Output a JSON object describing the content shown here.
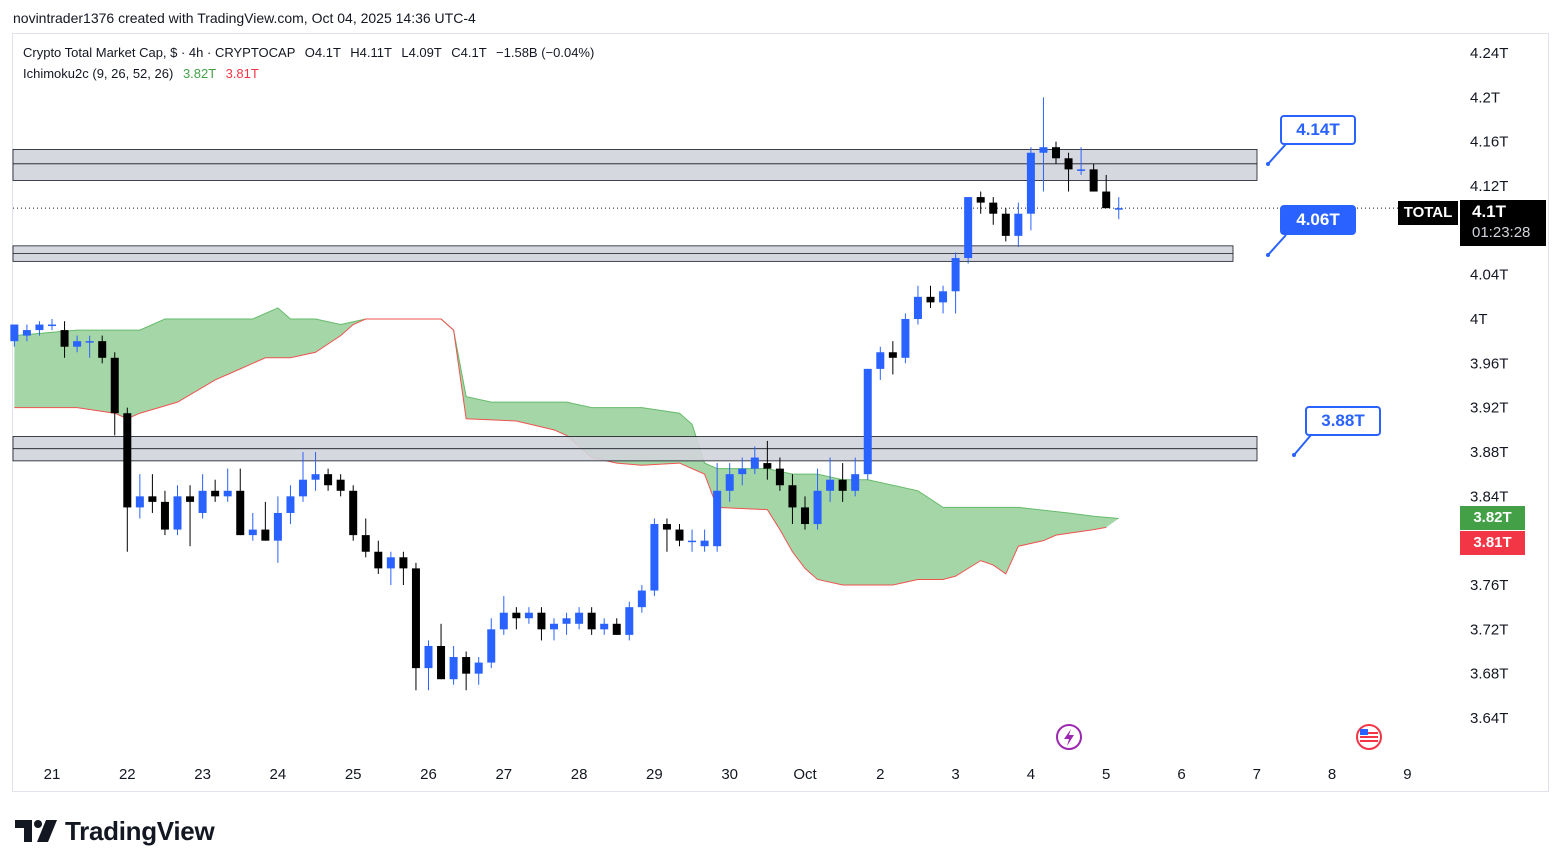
{
  "caption": "novintrader1376 created with TradingView.com, Oct 04, 2025 14:36 UTC-4",
  "legend": {
    "symbol": "Crypto Total Market Cap, $ · 4h · CRYPTOCAP",
    "open": "O4.1T",
    "high": "H4.11T",
    "low": "L4.09T",
    "close": "C4.1T",
    "change": "−1.58B (−0.04%)",
    "indicator": "Ichimoku2c (9, 26, 52, 26)",
    "ind_val1": "3.82T",
    "ind_val2": "3.81T"
  },
  "price_labels": {
    "symbol": "TOTAL",
    "last": "4.1T",
    "countdown": "01:23:28",
    "lead1": "3.82T",
    "lead2": "3.81T"
  },
  "callouts": {
    "upper": "4.14T",
    "middle": "4.06T",
    "lower": "3.88T"
  },
  "colors": {
    "up": "#2962ff",
    "down": "#000000",
    "cloud_fill": "#a5d6a7",
    "cloud_line": "#ef5350",
    "zone_fill": "#d1d4dc",
    "lead1": "#43a047",
    "lead2": "#f23645"
  },
  "branding": "TradingView",
  "icons": {
    "event_flash": "lightning-icon",
    "event_economic": "us-flag-icon",
    "logo": "tradingview-logo-icon"
  },
  "chart_data": {
    "type": "candlestick",
    "title": "Crypto Total Market Cap, $ · 4h · CRYPTOCAP",
    "y_ticks": [
      "4.24T",
      "4.2T",
      "4.16T",
      "4.12T",
      "4.04T",
      "4T",
      "3.96T",
      "3.92T",
      "3.88T",
      "3.84T",
      "3.76T",
      "3.72T",
      "3.68T",
      "3.64T"
    ],
    "y_tick_values": [
      4.24,
      4.2,
      4.16,
      4.12,
      4.04,
      4.0,
      3.96,
      3.92,
      3.88,
      3.84,
      3.76,
      3.72,
      3.68,
      3.64
    ],
    "ylim": [
      3.615,
      4.265
    ],
    "x_ticks": [
      "21",
      "22",
      "23",
      "24",
      "25",
      "26",
      "27",
      "28",
      "29",
      "30",
      "Oct",
      "2",
      "3",
      "4",
      "5",
      "6",
      "7",
      "8",
      "9"
    ],
    "x_start_day": 21,
    "candles_per_day": 6,
    "candles": [
      [
        3.98,
        3.995,
        3.975,
        3.995
      ],
      [
        3.985,
        3.995,
        3.98,
        3.99
      ],
      [
        3.99,
        3.998,
        3.985,
        3.995
      ],
      [
        3.995,
        4.0,
        3.99,
        3.995
      ],
      [
        3.99,
        3.998,
        3.965,
        3.975
      ],
      [
        3.975,
        3.985,
        3.97,
        3.98
      ],
      [
        3.98,
        3.985,
        3.965,
        3.98
      ],
      [
        3.98,
        3.985,
        3.96,
        3.965
      ],
      [
        3.965,
        3.97,
        3.895,
        3.915
      ],
      [
        3.915,
        3.92,
        3.79,
        3.83
      ],
      [
        3.83,
        3.86,
        3.82,
        3.84
      ],
      [
        3.84,
        3.86,
        3.825,
        3.835
      ],
      [
        3.835,
        3.845,
        3.805,
        3.81
      ],
      [
        3.81,
        3.85,
        3.805,
        3.84
      ],
      [
        3.84,
        3.85,
        3.795,
        3.835
      ],
      [
        3.825,
        3.86,
        3.82,
        3.845
      ],
      [
        3.845,
        3.855,
        3.835,
        3.84
      ],
      [
        3.84,
        3.865,
        3.835,
        3.845
      ],
      [
        3.845,
        3.865,
        3.805,
        3.805
      ],
      [
        3.805,
        3.825,
        3.8,
        3.81
      ],
      [
        3.81,
        3.835,
        3.8,
        3.8
      ],
      [
        3.8,
        3.84,
        3.78,
        3.825
      ],
      [
        3.825,
        3.85,
        3.815,
        3.84
      ],
      [
        3.84,
        3.88,
        3.835,
        3.855
      ],
      [
        3.855,
        3.88,
        3.845,
        3.86
      ],
      [
        3.86,
        3.865,
        3.845,
        3.85
      ],
      [
        3.855,
        3.86,
        3.84,
        3.845
      ],
      [
        3.845,
        3.85,
        3.8,
        3.805
      ],
      [
        3.805,
        3.82,
        3.785,
        3.79
      ],
      [
        3.79,
        3.8,
        3.77,
        3.775
      ],
      [
        3.775,
        3.79,
        3.76,
        3.785
      ],
      [
        3.785,
        3.79,
        3.76,
        3.775
      ],
      [
        3.775,
        3.78,
        3.665,
        3.685
      ],
      [
        3.685,
        3.71,
        3.665,
        3.705
      ],
      [
        3.705,
        3.725,
        3.675,
        3.675
      ],
      [
        3.675,
        3.705,
        3.67,
        3.695
      ],
      [
        3.695,
        3.7,
        3.665,
        3.68
      ],
      [
        3.68,
        3.695,
        3.67,
        3.69
      ],
      [
        3.69,
        3.73,
        3.685,
        3.72
      ],
      [
        3.72,
        3.75,
        3.715,
        3.735
      ],
      [
        3.735,
        3.74,
        3.72,
        3.73
      ],
      [
        3.73,
        3.74,
        3.725,
        3.735
      ],
      [
        3.735,
        3.74,
        3.71,
        3.72
      ],
      [
        3.72,
        3.73,
        3.71,
        3.725
      ],
      [
        3.725,
        3.735,
        3.715,
        3.73
      ],
      [
        3.725,
        3.74,
        3.72,
        3.735
      ],
      [
        3.735,
        3.74,
        3.715,
        3.72
      ],
      [
        3.72,
        3.73,
        3.715,
        3.725
      ],
      [
        3.725,
        3.73,
        3.715,
        3.715
      ],
      [
        3.715,
        3.745,
        3.71,
        3.74
      ],
      [
        3.74,
        3.76,
        3.735,
        3.755
      ],
      [
        3.755,
        3.82,
        3.75,
        3.815
      ],
      [
        3.815,
        3.82,
        3.79,
        3.81
      ],
      [
        3.81,
        3.815,
        3.795,
        3.8
      ],
      [
        3.8,
        3.81,
        3.79,
        3.8
      ],
      [
        3.795,
        3.81,
        3.79,
        3.8
      ],
      [
        3.795,
        3.87,
        3.79,
        3.845
      ],
      [
        3.845,
        3.87,
        3.835,
        3.86
      ],
      [
        3.86,
        3.875,
        3.85,
        3.865
      ],
      [
        3.865,
        3.885,
        3.86,
        3.875
      ],
      [
        3.87,
        3.89,
        3.855,
        3.865
      ],
      [
        3.865,
        3.875,
        3.845,
        3.85
      ],
      [
        3.85,
        3.86,
        3.815,
        3.83
      ],
      [
        3.83,
        3.84,
        3.81,
        3.815
      ],
      [
        3.815,
        3.865,
        3.81,
        3.845
      ],
      [
        3.845,
        3.875,
        3.835,
        3.855
      ],
      [
        3.855,
        3.87,
        3.835,
        3.845
      ],
      [
        3.845,
        3.875,
        3.84,
        3.86
      ],
      [
        3.86,
        3.955,
        3.855,
        3.955
      ],
      [
        3.955,
        3.975,
        3.945,
        3.97
      ],
      [
        3.97,
        3.98,
        3.95,
        3.965
      ],
      [
        3.965,
        4.005,
        3.96,
        4.0
      ],
      [
        4.0,
        4.03,
        3.995,
        4.02
      ],
      [
        4.02,
        4.03,
        4.01,
        4.015
      ],
      [
        4.015,
        4.03,
        4.005,
        4.025
      ],
      [
        4.025,
        4.06,
        4.005,
        4.055
      ],
      [
        4.055,
        4.11,
        4.05,
        4.11
      ],
      [
        4.11,
        4.115,
        4.095,
        4.105
      ],
      [
        4.105,
        4.11,
        4.085,
        4.095
      ],
      [
        4.095,
        4.1,
        4.07,
        4.075
      ],
      [
        4.075,
        4.105,
        4.065,
        4.095
      ],
      [
        4.095,
        4.155,
        4.08,
        4.15
      ],
      [
        4.15,
        4.2,
        4.115,
        4.155
      ],
      [
        4.155,
        4.16,
        4.14,
        4.145
      ],
      [
        4.145,
        4.15,
        4.115,
        4.135
      ],
      [
        4.135,
        4.155,
        4.13,
        4.135
      ],
      [
        4.135,
        4.14,
        4.115,
        4.115
      ],
      [
        4.115,
        4.13,
        4.1,
        4.1
      ],
      [
        4.1,
        4.11,
        4.09,
        4.1
      ]
    ],
    "cloud_upper": [
      [
        0,
        3.985
      ],
      [
        5,
        3.99
      ],
      [
        10,
        3.99
      ],
      [
        12,
        4.0
      ],
      [
        17,
        4.0
      ],
      [
        19,
        4.0
      ],
      [
        21,
        4.01
      ],
      [
        22,
        4.0
      ],
      [
        24,
        4.0
      ],
      [
        26,
        3.995
      ],
      [
        28,
        4.0
      ],
      [
        30,
        4.0
      ],
      [
        32,
        4.0
      ],
      [
        34,
        4.0
      ],
      [
        35,
        3.99
      ],
      [
        36,
        3.93
      ],
      [
        38,
        3.925
      ],
      [
        44,
        3.925
      ],
      [
        46,
        3.92
      ],
      [
        50,
        3.92
      ],
      [
        53,
        3.915
      ],
      [
        54,
        3.905
      ],
      [
        55,
        3.87
      ],
      [
        56,
        3.865
      ],
      [
        60,
        3.865
      ],
      [
        62,
        3.86
      ],
      [
        64,
        3.86
      ],
      [
        66,
        3.855
      ],
      [
        68,
        3.855
      ],
      [
        70,
        3.85
      ],
      [
        72,
        3.845
      ],
      [
        74,
        3.83
      ],
      [
        76,
        3.83
      ],
      [
        80,
        3.83
      ],
      [
        84,
        3.825
      ],
      [
        86,
        3.822
      ],
      [
        88,
        3.82
      ]
    ],
    "cloud_lower": [
      [
        0,
        3.92
      ],
      [
        5,
        3.92
      ],
      [
        8,
        3.915
      ],
      [
        9,
        3.91
      ],
      [
        10,
        3.915
      ],
      [
        13,
        3.925
      ],
      [
        16,
        3.945
      ],
      [
        18,
        3.955
      ],
      [
        20,
        3.965
      ],
      [
        22,
        3.965
      ],
      [
        24,
        3.97
      ],
      [
        26,
        3.985
      ],
      [
        27,
        3.995
      ],
      [
        28,
        4.0
      ],
      [
        30,
        4.0
      ],
      [
        32,
        4.0
      ],
      [
        34,
        4.0
      ],
      [
        35,
        3.99
      ],
      [
        36,
        3.91
      ],
      [
        40,
        3.908
      ],
      [
        43,
        3.9
      ],
      [
        44,
        3.895
      ],
      [
        46,
        3.875
      ],
      [
        48,
        3.87
      ],
      [
        50,
        3.868
      ],
      [
        53,
        3.87
      ],
      [
        55,
        3.86
      ],
      [
        56,
        3.83
      ],
      [
        60,
        3.828
      ],
      [
        61,
        3.81
      ],
      [
        62,
        3.79
      ],
      [
        63,
        3.775
      ],
      [
        64,
        3.765
      ],
      [
        66,
        3.76
      ],
      [
        70,
        3.76
      ],
      [
        72,
        3.765
      ],
      [
        74,
        3.765
      ],
      [
        75,
        3.768
      ],
      [
        76,
        3.775
      ],
      [
        77,
        3.782
      ],
      [
        78,
        3.778
      ],
      [
        79,
        3.77
      ],
      [
        80,
        3.795
      ],
      [
        82,
        3.8
      ],
      [
        83,
        3.805
      ],
      [
        86,
        3.81
      ],
      [
        87,
        3.812
      ]
    ],
    "zones": [
      {
        "top": 4.153,
        "bottom": 4.125,
        "mid": 4.14,
        "end_day": 7.0
      },
      {
        "top": 4.066,
        "bottom": 4.052,
        "mid": 4.059,
        "end_day": 6.7
      },
      {
        "top": 3.894,
        "bottom": 3.872,
        "mid": 3.883,
        "end_day": 7.0
      }
    ],
    "last_price": 4.1
  }
}
